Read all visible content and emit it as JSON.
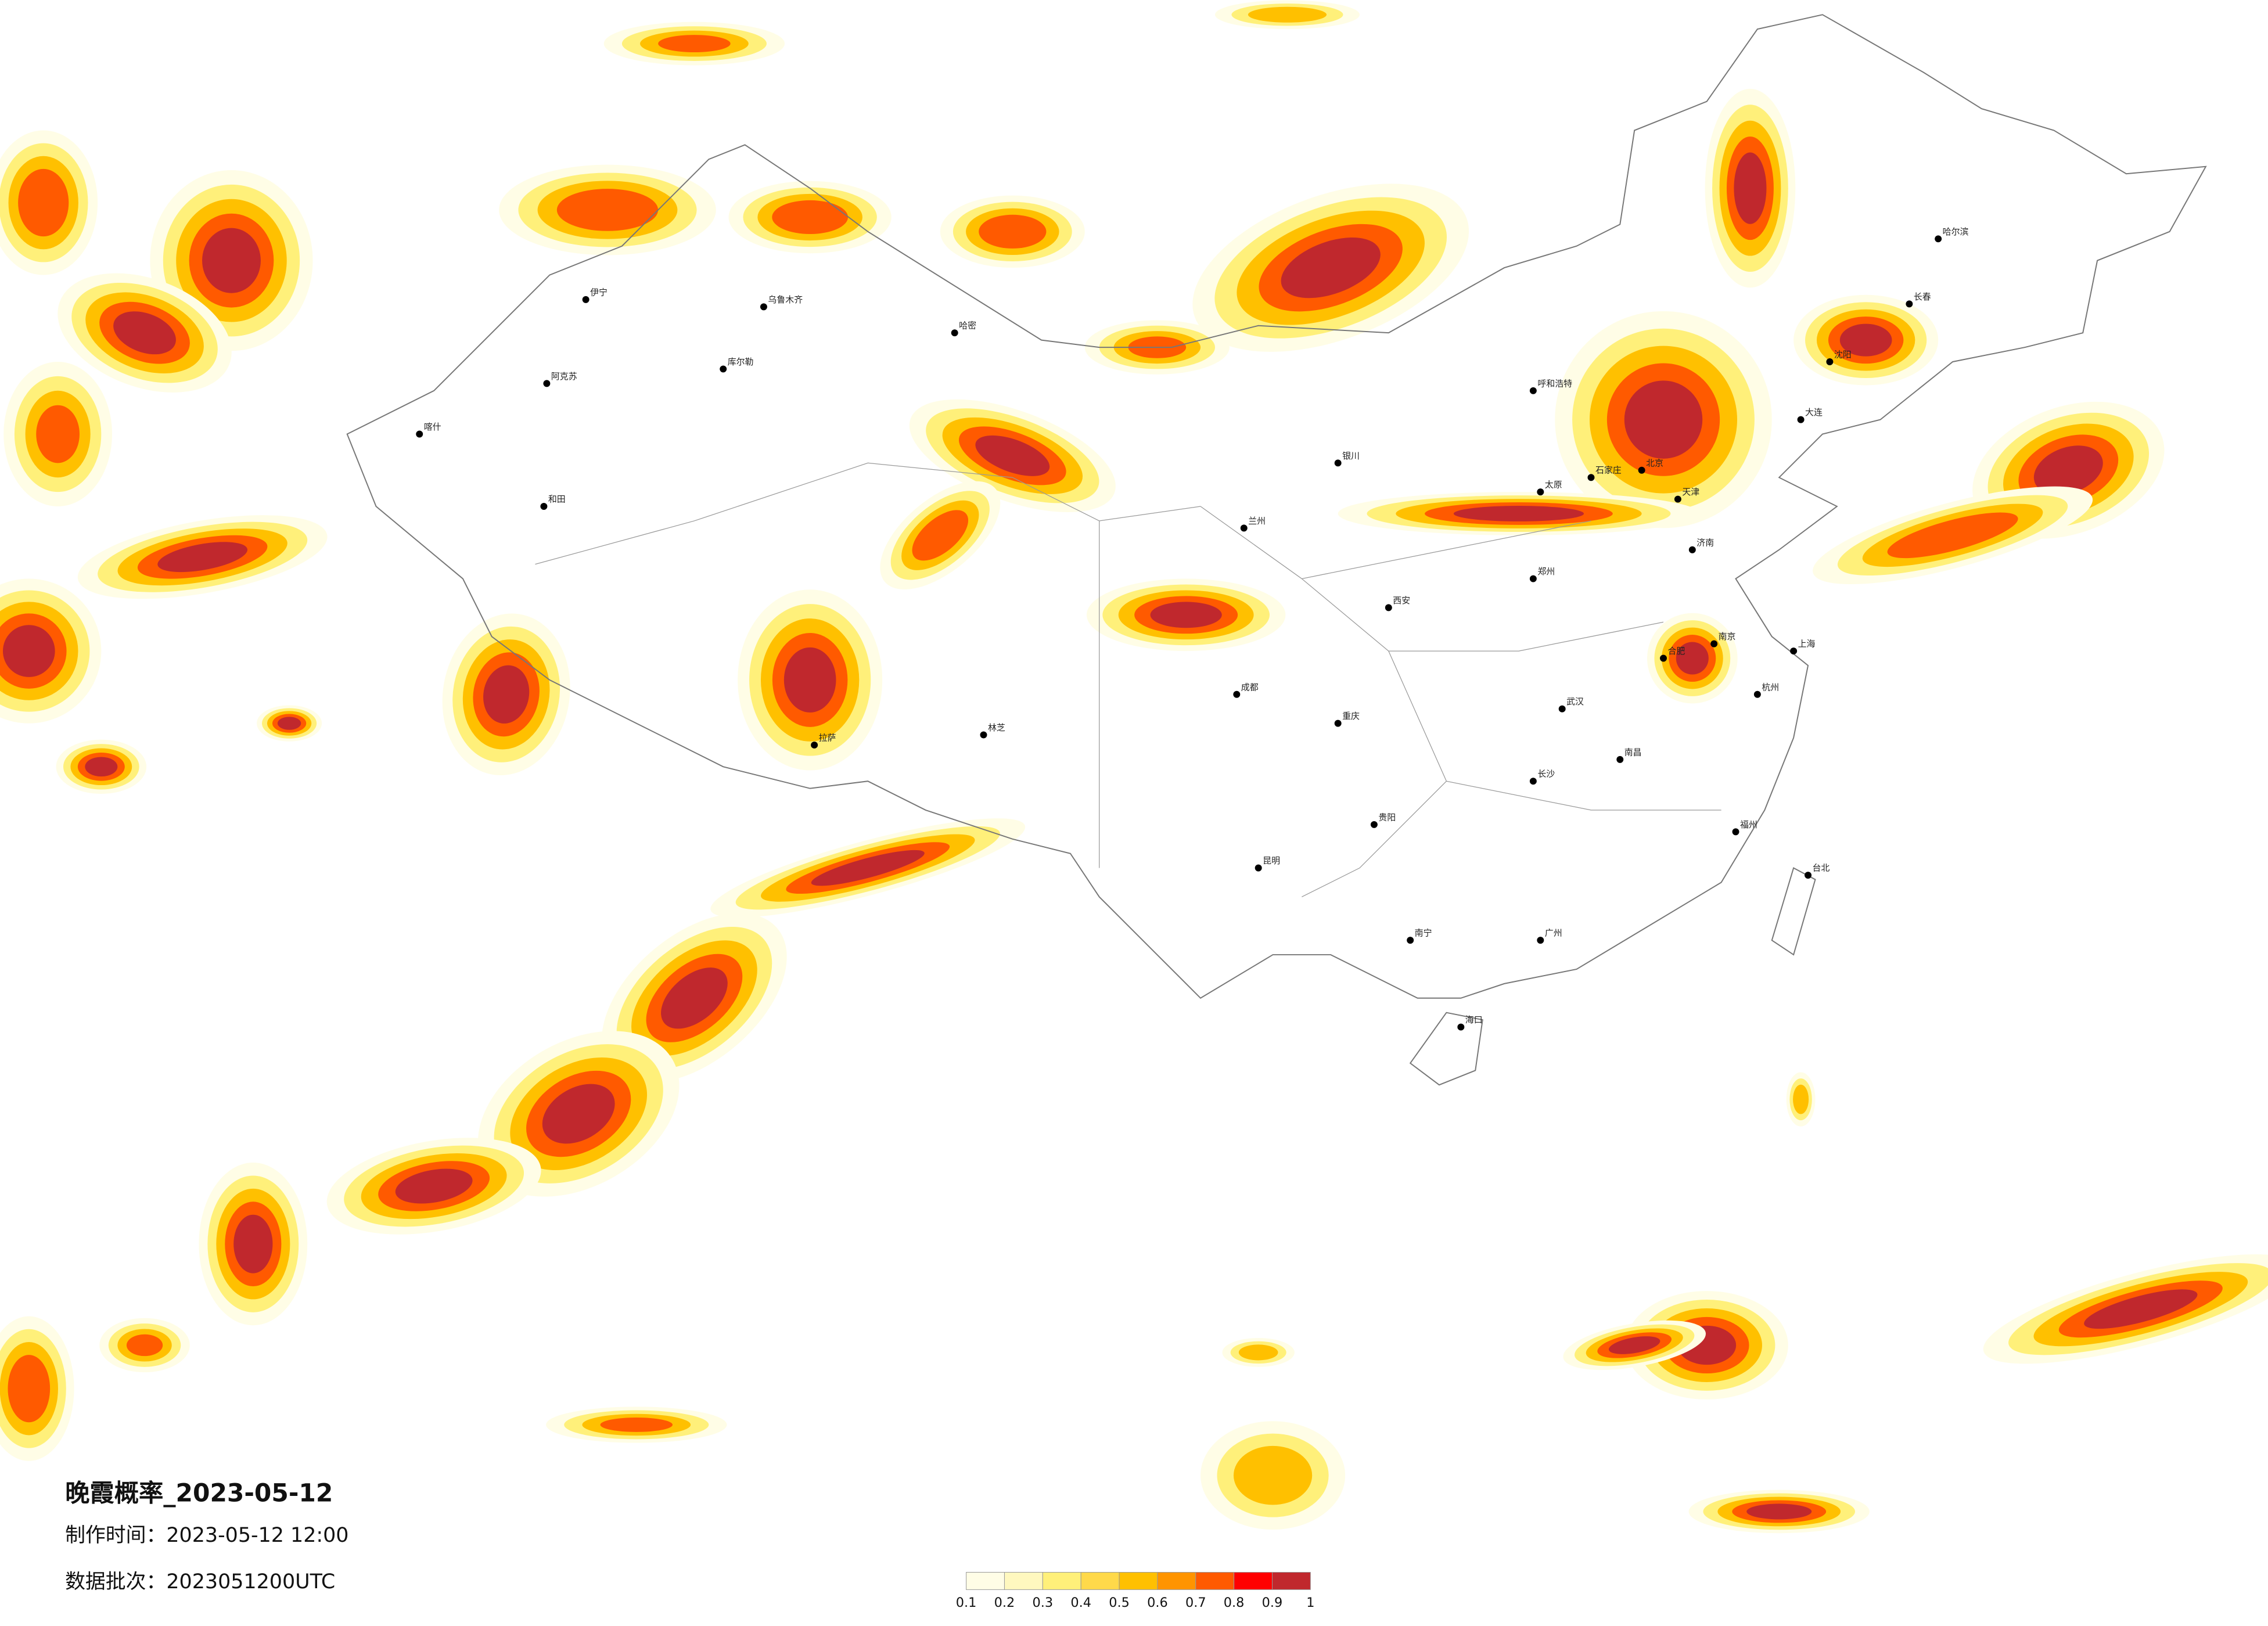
{
  "map": {
    "title": "晚霞概率_2023-05-12",
    "made_time": "制作时间：2023-05-12 12:00",
    "batch": "数据批次：2023051200UTC",
    "legend": {
      "ticks": [
        0.1,
        0.2,
        0.3,
        0.4,
        0.5,
        0.6,
        0.7,
        0.8,
        0.9,
        1
      ],
      "colors": [
        "#fffde6",
        "#fff8bf",
        "#fff07a",
        "#ffd94a",
        "#ffc000",
        "#ff9400",
        "#ff5a00",
        "#ff0000",
        "#c0282d"
      ]
    },
    "cities": [
      "乌鲁木齐",
      "伊宁",
      "喀什",
      "和田",
      "阿克苏",
      "库尔勒",
      "哈密",
      "拉萨",
      "林芝",
      "北京",
      "天津",
      "石家庄",
      "太原",
      "呼和浩特",
      "济南",
      "郑州",
      "西安",
      "兰州",
      "银川",
      "武汉",
      "长沙",
      "南昌",
      "合肥",
      "南京",
      "上海",
      "杭州",
      "福州",
      "广州",
      "南宁",
      "海口",
      "贵阳",
      "昆明",
      "重庆",
      "成都",
      "沈阳",
      "长春",
      "哈尔滨",
      "台北",
      "大连"
    ]
  }
}
